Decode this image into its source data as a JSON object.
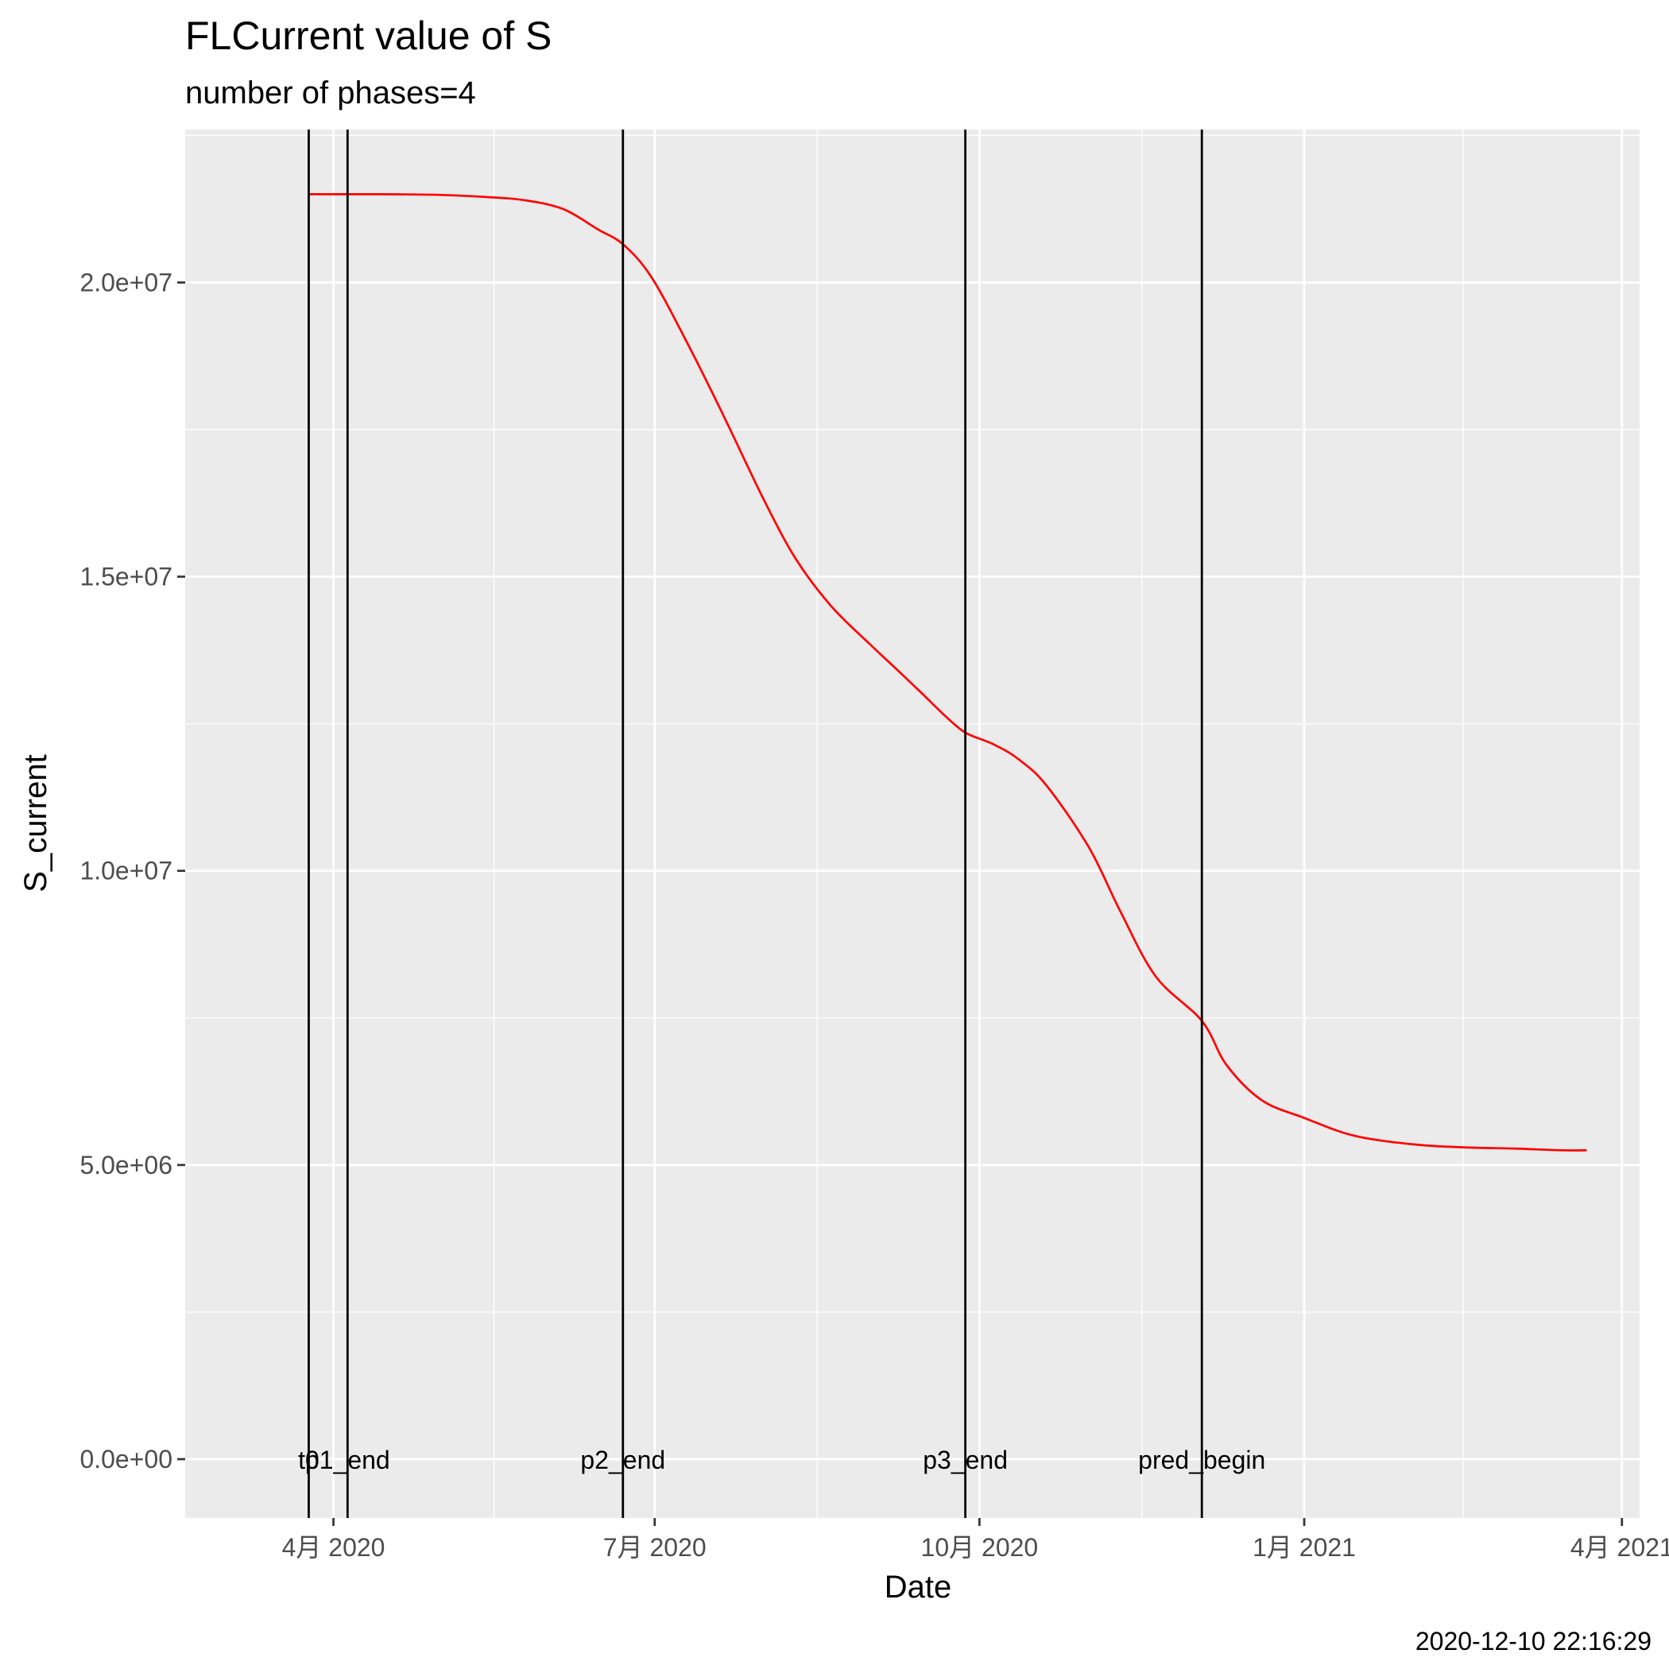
{
  "chart_data": {
    "type": "line",
    "title": "FLCurrent value of S",
    "subtitle": "number of phases=4",
    "xlabel": "Date",
    "ylabel": "S_current",
    "caption": "2020-12-10 22:16:29",
    "xlim": [
      "2020-02-19",
      "2021-04-06"
    ],
    "ylim": [
      -1000000,
      22600000
    ],
    "x_ticks": [
      {
        "date": "2020-04-01",
        "label": "4月 2020"
      },
      {
        "date": "2020-07-01",
        "label": "7月 2020"
      },
      {
        "date": "2020-10-01",
        "label": "10月 2020"
      },
      {
        "date": "2021-01-01",
        "label": "1月 2021"
      },
      {
        "date": "2021-04-01",
        "label": "4月 2021"
      }
    ],
    "y_ticks": [
      {
        "value": 0,
        "label": "0.0e+00"
      },
      {
        "value": 5000000,
        "label": "5.0e+06"
      },
      {
        "value": 10000000,
        "label": "1.0e+07"
      },
      {
        "value": 15000000,
        "label": "1.5e+07"
      },
      {
        "value": 20000000,
        "label": "2.0e+07"
      }
    ],
    "vlines": [
      {
        "date": "2020-03-25",
        "label": "t0"
      },
      {
        "date": "2020-04-05",
        "label": "p1_end"
      },
      {
        "date": "2020-06-22",
        "label": "p2_end"
      },
      {
        "date": "2020-09-27",
        "label": "p3_end"
      },
      {
        "date": "2020-12-03",
        "label": "pred_begin"
      }
    ],
    "series": [
      {
        "name": "S_current",
        "color": "#ff0000",
        "points": [
          [
            "2020-03-25",
            21500000
          ],
          [
            "2020-04-15",
            21500000
          ],
          [
            "2020-05-01",
            21490000
          ],
          [
            "2020-05-15",
            21450000
          ],
          [
            "2020-05-25",
            21400000
          ],
          [
            "2020-06-05",
            21250000
          ],
          [
            "2020-06-15",
            20900000
          ],
          [
            "2020-06-22",
            20650000
          ],
          [
            "2020-06-30",
            20100000
          ],
          [
            "2020-07-10",
            19000000
          ],
          [
            "2020-07-20",
            17800000
          ],
          [
            "2020-08-01",
            16300000
          ],
          [
            "2020-08-10",
            15300000
          ],
          [
            "2020-08-20",
            14500000
          ],
          [
            "2020-08-31",
            13850000
          ],
          [
            "2020-09-08",
            13400000
          ],
          [
            "2020-09-15",
            13000000
          ],
          [
            "2020-09-21",
            12650000
          ],
          [
            "2020-09-27",
            12350000
          ],
          [
            "2020-10-05",
            12150000
          ],
          [
            "2020-10-12",
            11900000
          ],
          [
            "2020-10-20",
            11450000
          ],
          [
            "2020-11-01",
            10400000
          ],
          [
            "2020-11-10",
            9300000
          ],
          [
            "2020-11-20",
            8200000
          ],
          [
            "2020-12-03",
            7450000
          ],
          [
            "2020-12-10",
            6700000
          ],
          [
            "2020-12-20",
            6100000
          ],
          [
            "2021-01-01",
            5800000
          ],
          [
            "2021-01-15",
            5500000
          ],
          [
            "2021-02-01",
            5350000
          ],
          [
            "2021-02-15",
            5300000
          ],
          [
            "2021-03-01",
            5280000
          ],
          [
            "2021-03-15",
            5250000
          ],
          [
            "2021-03-22",
            5250000
          ]
        ]
      }
    ]
  }
}
